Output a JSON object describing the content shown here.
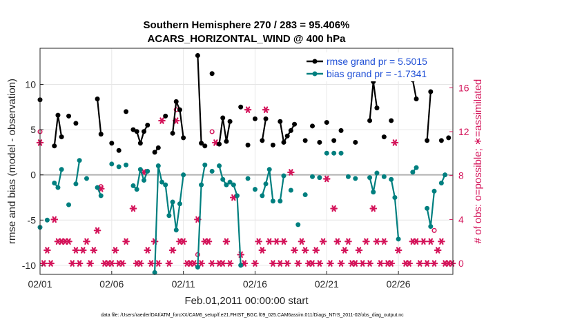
{
  "chart_data": {
    "type": "line",
    "title": [
      "Southern Hemisphere 270 / 283 = 95.406%",
      "ACARS_HORIZONTAL_WIND @ 400 hPa"
    ],
    "xlabel": "Feb.01,2011 00:00:00 start",
    "ylabel": "rmse and bias (model - observation)",
    "ylabel_right": "# of obs: o=possible; ∗=assimilated",
    "xlim": [
      0,
      28.8
    ],
    "ylim": [
      -11,
      14
    ],
    "ylim_right": [
      -1,
      19.6
    ],
    "x_ticks": [
      0,
      5,
      10,
      15,
      20,
      25
    ],
    "x_tick_labels": [
      "02/01",
      "02/06",
      "02/11",
      "02/16",
      "02/21",
      "02/26"
    ],
    "y_ticks": [
      -10,
      -5,
      0,
      5,
      10
    ],
    "y_tick_labels": [
      "-10",
      "-5",
      "0",
      "5",
      "10"
    ],
    "y_right_ticks": [
      0,
      4,
      8,
      12,
      16
    ],
    "y_right_tick_labels": [
      "0",
      "4",
      "8",
      "12",
      "16"
    ],
    "footnote": "data file: /Users/raeder/DAI/ATM_forcXX/CAM6_setup/f.e21.FHIST_BGC.f09_025.CAM6assim.011/Diags_NTrS_2011-02/obs_diag_output.nc",
    "series": [
      {
        "name": "rmse grand pr = 5.5015",
        "color": "#000000",
        "points": [
          [
            0,
            8.3
          ],
          [
            1,
            3.2
          ],
          [
            1.25,
            6.6
          ],
          [
            1.5,
            4.2
          ],
          [
            2,
            6.5
          ],
          [
            2.5,
            5.7
          ],
          [
            4,
            8.4
          ],
          [
            4.25,
            4.5
          ],
          [
            5,
            3.5
          ],
          [
            5.5,
            2.7
          ],
          [
            6,
            7.0
          ],
          [
            6.5,
            5.0
          ],
          [
            6.75,
            4.8
          ],
          [
            7,
            3.5
          ],
          [
            7.25,
            4.8
          ],
          [
            7.5,
            5.5
          ],
          [
            8,
            2.5
          ],
          [
            8.25,
            3.0
          ],
          [
            8.75,
            6.5
          ],
          [
            9.25,
            4.6
          ],
          [
            9.5,
            8.1
          ],
          [
            9.75,
            7.2
          ],
          [
            10,
            4.1
          ],
          [
            11,
            13.2
          ],
          [
            11.25,
            3.5
          ],
          [
            11.5,
            3.2
          ],
          [
            12,
            11.2
          ],
          [
            12.5,
            3.4
          ],
          [
            12.75,
            6.3
          ],
          [
            13,
            3.7
          ],
          [
            13.25,
            5.9
          ],
          [
            14,
            7.5
          ],
          [
            14.5,
            3.3
          ],
          [
            15,
            6.2
          ],
          [
            15.5,
            3.8
          ],
          [
            15.75,
            6.2
          ],
          [
            16.25,
            3.3
          ],
          [
            16.75,
            5.9
          ],
          [
            17,
            3.6
          ],
          [
            17.25,
            4.3
          ],
          [
            17.5,
            4.9
          ],
          [
            17.75,
            5.6
          ],
          [
            18.5,
            3.8
          ],
          [
            19,
            5.4
          ],
          [
            19.5,
            3.6
          ],
          [
            20,
            5.8
          ],
          [
            20.5,
            3.8
          ],
          [
            21,
            4.9
          ],
          [
            22,
            3.6
          ],
          [
            23,
            6.0
          ],
          [
            23.25,
            10.3
          ],
          [
            23.5,
            7.4
          ],
          [
            24,
            4.2
          ],
          [
            24.5,
            6.0
          ],
          [
            25,
            12.8
          ],
          [
            26,
            10.5
          ],
          [
            26.25,
            8.4
          ],
          [
            27,
            3.8
          ],
          [
            27.25,
            9.2
          ],
          [
            28,
            3.8
          ],
          [
            28.5,
            4.1
          ]
        ]
      },
      {
        "name": "bias grand pr = -1.7341",
        "color": "#007f7f",
        "points": [
          [
            0,
            -5.8
          ],
          [
            0.5,
            -5.0
          ],
          [
            1,
            -0.9
          ],
          [
            1.25,
            -1.4
          ],
          [
            1.5,
            0.6
          ],
          [
            2,
            -3.3
          ],
          [
            2.5,
            -1.0
          ],
          [
            2.75,
            1.6
          ],
          [
            3.25,
            -0.4
          ],
          [
            4,
            -1.4
          ],
          [
            4.25,
            -2.3
          ],
          [
            5,
            1.2
          ],
          [
            5.5,
            0.9
          ],
          [
            6,
            1.1
          ],
          [
            6.5,
            -1.2
          ],
          [
            6.75,
            -1.6
          ],
          [
            7,
            0.6
          ],
          [
            7.25,
            -0.6
          ],
          [
            7.5,
            0.4
          ],
          [
            8,
            -10.8
          ],
          [
            8.25,
            1.0
          ],
          [
            8.5,
            -0.8
          ],
          [
            8.75,
            -1.1
          ],
          [
            9,
            -4.5
          ],
          [
            9.25,
            -3.0
          ],
          [
            9.5,
            -6.1
          ],
          [
            9.75,
            -3.2
          ],
          [
            10,
            0.0
          ],
          [
            11,
            -10.2
          ],
          [
            11.25,
            -1.1
          ],
          [
            11.5,
            1.1
          ],
          [
            12,
            0.4
          ],
          [
            12.5,
            1.0
          ],
          [
            12.75,
            -0.5
          ],
          [
            13,
            -1.1
          ],
          [
            13.25,
            -0.8
          ],
          [
            13.5,
            -1.1
          ],
          [
            13.75,
            -2.3
          ],
          [
            14,
            -10.0
          ],
          [
            14.5,
            -0.4
          ],
          [
            15,
            -1.6
          ],
          [
            15.5,
            -2.3
          ],
          [
            15.75,
            -1.0
          ],
          [
            16,
            0.6
          ],
          [
            16.25,
            -2.9
          ],
          [
            16.75,
            -2.9
          ],
          [
            17,
            -0.1
          ],
          [
            17.5,
            -1.7
          ],
          [
            18,
            -5.5
          ],
          [
            18.5,
            -2.2
          ],
          [
            19,
            -0.2
          ],
          [
            19.5,
            -0.3
          ],
          [
            20,
            2.4
          ],
          [
            20.5,
            2.4
          ],
          [
            21,
            2.4
          ],
          [
            21.5,
            -0.2
          ],
          [
            22,
            -0.4
          ],
          [
            23,
            -0.3
          ],
          [
            23.25,
            -1.9
          ],
          [
            23.5,
            0.2
          ],
          [
            24,
            -0.2
          ],
          [
            24.5,
            -0.5
          ],
          [
            24.75,
            -2.5
          ],
          [
            25,
            -7.1
          ],
          [
            26,
            0.3
          ],
          [
            26.25,
            0.8
          ],
          [
            27,
            -3.7
          ],
          [
            27.25,
            -5.7
          ],
          [
            27.5,
            -1.8
          ],
          [
            28,
            -0.9
          ],
          [
            28.25,
            0.0
          ]
        ]
      },
      {
        "name": "possible",
        "axis": "right",
        "marker": "open-circle",
        "color": "#d4145a",
        "points": [
          [
            0,
            12
          ],
          [
            4.25,
            7
          ],
          [
            9.5,
            14
          ],
          [
            11,
            0.8
          ],
          [
            12,
            12
          ],
          [
            27.5,
            3
          ]
        ]
      },
      {
        "name": "assimilated",
        "axis": "right",
        "marker": "asterisk",
        "color": "#d4145a",
        "points": [
          [
            0,
            11
          ],
          [
            0.25,
            0
          ],
          [
            0.5,
            1.2
          ],
          [
            0.75,
            0
          ],
          [
            1,
            4
          ],
          [
            1.25,
            2
          ],
          [
            1.5,
            2
          ],
          [
            1.75,
            2
          ],
          [
            2,
            2
          ],
          [
            2.25,
            0
          ],
          [
            2.5,
            1.2
          ],
          [
            2.75,
            0
          ],
          [
            3,
            1.2
          ],
          [
            3.25,
            2
          ],
          [
            3.5,
            0
          ],
          [
            3.75,
            1.2
          ],
          [
            4,
            3
          ],
          [
            4.25,
            6.8
          ],
          [
            4.5,
            0
          ],
          [
            4.75,
            0
          ],
          [
            5,
            0
          ],
          [
            5.25,
            1.2
          ],
          [
            5.5,
            0
          ],
          [
            5.75,
            0
          ],
          [
            6,
            2
          ],
          [
            6.5,
            5
          ],
          [
            6.75,
            0
          ],
          [
            7,
            0
          ],
          [
            7.25,
            8.3
          ],
          [
            7.5,
            1.2
          ],
          [
            7.75,
            0
          ],
          [
            8,
            2
          ],
          [
            8.25,
            0
          ],
          [
            8.5,
            13
          ],
          [
            9,
            0
          ],
          [
            9.25,
            1.2
          ],
          [
            9.5,
            13
          ],
          [
            9.75,
            2
          ],
          [
            10,
            2
          ],
          [
            10.25,
            0
          ],
          [
            10.5,
            0
          ],
          [
            10.75,
            0
          ],
          [
            11,
            4
          ],
          [
            11.25,
            0
          ],
          [
            11.5,
            2
          ],
          [
            11.75,
            2
          ],
          [
            12,
            0
          ],
          [
            12.25,
            11
          ],
          [
            12.5,
            0
          ],
          [
            12.75,
            0
          ],
          [
            13,
            2
          ],
          [
            13.25,
            0
          ],
          [
            13.5,
            6
          ],
          [
            14,
            0.8
          ],
          [
            14.25,
            0
          ],
          [
            14.5,
            14
          ],
          [
            15,
            0
          ],
          [
            15.25,
            2
          ],
          [
            15.5,
            1.2
          ],
          [
            15.75,
            14
          ],
          [
            16,
            2
          ],
          [
            16.25,
            0
          ],
          [
            16.5,
            2
          ],
          [
            16.75,
            0
          ],
          [
            17,
            2
          ],
          [
            17.25,
            0
          ],
          [
            17.5,
            8.3
          ],
          [
            17.75,
            1.2
          ],
          [
            18,
            0
          ],
          [
            18.25,
            2
          ],
          [
            18.5,
            1.2
          ],
          [
            18.75,
            0
          ],
          [
            19,
            0
          ],
          [
            19.25,
            1.2
          ],
          [
            19.5,
            0
          ],
          [
            19.75,
            2
          ],
          [
            20,
            7.7
          ],
          [
            20.25,
            0
          ],
          [
            20.5,
            5
          ],
          [
            20.75,
            2
          ],
          [
            21,
            0
          ],
          [
            21.25,
            1.2
          ],
          [
            21.5,
            2
          ],
          [
            21.75,
            0
          ],
          [
            22,
            0
          ],
          [
            22.25,
            1.2
          ],
          [
            22.5,
            0
          ],
          [
            22.75,
            2
          ],
          [
            23,
            0
          ],
          [
            23.25,
            5
          ],
          [
            23.5,
            2
          ],
          [
            23.75,
            0
          ],
          [
            24,
            2
          ],
          [
            24.25,
            0
          ],
          [
            24.5,
            0
          ],
          [
            24.75,
            11
          ],
          [
            25,
            1.2
          ],
          [
            25.5,
            0
          ],
          [
            25.75,
            0
          ],
          [
            26,
            2
          ],
          [
            26.25,
            2
          ],
          [
            26.5,
            0
          ],
          [
            26.75,
            2
          ],
          [
            27,
            0
          ],
          [
            27.25,
            2
          ],
          [
            27.5,
            0
          ],
          [
            27.75,
            1.2
          ],
          [
            28,
            2
          ],
          [
            28.25,
            0
          ],
          [
            28.5,
            0
          ],
          [
            28.75,
            0
          ]
        ]
      }
    ]
  }
}
